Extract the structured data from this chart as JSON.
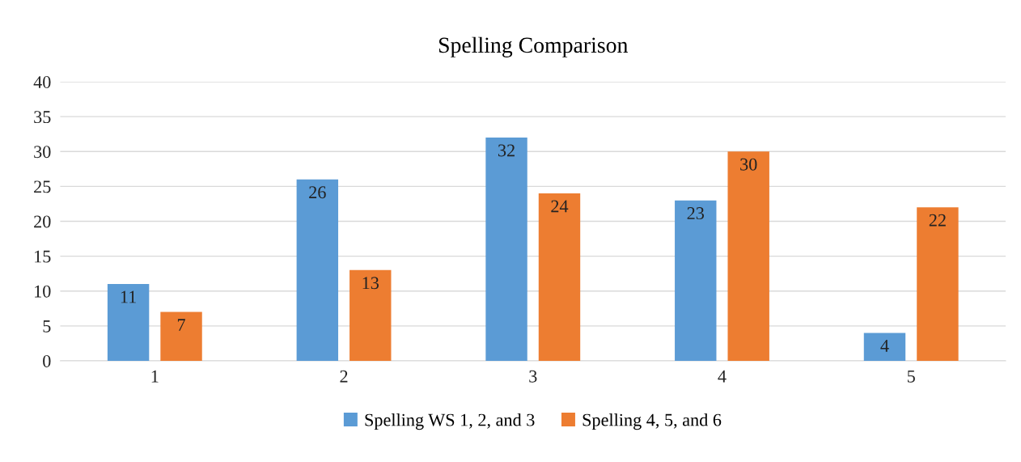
{
  "chart_data": {
    "type": "bar",
    "title": "Spelling Comparison",
    "categories": [
      "1",
      "2",
      "3",
      "4",
      "5"
    ],
    "series": [
      {
        "name": "Spelling WS 1, 2, and 3",
        "color": "#5b9bd5",
        "values": [
          11,
          26,
          32,
          23,
          4
        ]
      },
      {
        "name": "Spelling 4, 5, and 6",
        "color": "#ed7d31",
        "values": [
          7,
          13,
          24,
          30,
          22
        ]
      }
    ],
    "ylim": [
      0,
      40
    ],
    "yticks": [
      0,
      5,
      10,
      15,
      20,
      25,
      30,
      35,
      40
    ],
    "grid": "y",
    "legend": "bottom",
    "data_labels": true
  }
}
